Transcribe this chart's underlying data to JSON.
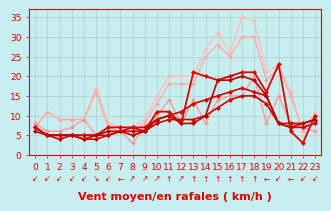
{
  "title": "",
  "xlabel": "Vent moyen/en rafales ( km/h )",
  "ylabel": "",
  "xlim": [
    -0.5,
    23.5
  ],
  "ylim": [
    0,
    37
  ],
  "yticks": [
    0,
    5,
    10,
    15,
    20,
    25,
    30,
    35
  ],
  "xticks": [
    0,
    1,
    2,
    3,
    4,
    5,
    6,
    7,
    8,
    9,
    10,
    11,
    12,
    13,
    14,
    15,
    16,
    17,
    18,
    19,
    20,
    21,
    22,
    23
  ],
  "background_color": "#c8efef",
  "grid_color": "#b0cccc",
  "series": [
    {
      "comment": "lightest pink - highest peaks up to 35",
      "x": [
        0,
        1,
        2,
        3,
        4,
        5,
        6,
        7,
        8,
        9,
        10,
        11,
        12,
        13,
        14,
        15,
        16,
        17,
        18,
        19,
        20,
        21,
        22,
        23
      ],
      "y": [
        7,
        11,
        9,
        9,
        9,
        17,
        8,
        7,
        7,
        9,
        15,
        20,
        20,
        20,
        27,
        31,
        26,
        35,
        34,
        21,
        23,
        16,
        6,
        11
      ],
      "color": "#ffbbbb",
      "lw": 1.0,
      "ms": 2.5
    },
    {
      "comment": "light pink",
      "x": [
        0,
        1,
        2,
        3,
        4,
        5,
        6,
        7,
        8,
        9,
        10,
        11,
        12,
        13,
        14,
        15,
        16,
        17,
        18,
        19,
        20,
        21,
        22,
        23
      ],
      "y": [
        7,
        11,
        9,
        9,
        9,
        16,
        7,
        6,
        6,
        8,
        13,
        18,
        18,
        18,
        25,
        28,
        25,
        30,
        30,
        19,
        22,
        15,
        6,
        10
      ],
      "color": "#ffaaaa",
      "lw": 1.0,
      "ms": 2.5
    },
    {
      "comment": "medium pink - wide swings",
      "x": [
        0,
        1,
        2,
        3,
        4,
        5,
        6,
        7,
        8,
        9,
        10,
        11,
        12,
        13,
        14,
        15,
        16,
        17,
        18,
        19,
        20,
        21,
        22,
        23
      ],
      "y": [
        8,
        6,
        6,
        7,
        9,
        5,
        6,
        6,
        3,
        7,
        10,
        14,
        8,
        14,
        8,
        14,
        15,
        15,
        20,
        8,
        15,
        8,
        7,
        6
      ],
      "color": "#ff9999",
      "lw": 1.0,
      "ms": 2.5
    },
    {
      "comment": "dark red line 1 - trending up steadily",
      "x": [
        0,
        1,
        2,
        3,
        4,
        5,
        6,
        7,
        8,
        9,
        10,
        11,
        12,
        13,
        14,
        15,
        16,
        17,
        18,
        19,
        20,
        21,
        22,
        23
      ],
      "y": [
        7,
        5,
        5,
        5,
        5,
        5,
        5,
        6,
        7,
        7,
        9,
        10,
        11,
        13,
        14,
        15,
        16,
        17,
        16,
        15,
        8,
        8,
        8,
        9
      ],
      "color": "#cc0000",
      "lw": 1.2,
      "ms": 2.5
    },
    {
      "comment": "dark red line 2 - stays low",
      "x": [
        0,
        1,
        2,
        3,
        4,
        5,
        6,
        7,
        8,
        9,
        10,
        11,
        12,
        13,
        14,
        15,
        16,
        17,
        18,
        19,
        20,
        21,
        22,
        23
      ],
      "y": [
        7,
        5,
        4,
        5,
        4,
        4,
        5,
        6,
        6,
        6,
        8,
        9,
        9,
        9,
        10,
        12,
        14,
        15,
        15,
        13,
        8,
        7,
        7,
        8
      ],
      "color": "#cc0000",
      "lw": 1.2,
      "ms": 2.5
    },
    {
      "comment": "darkest red - spiky, mid range",
      "x": [
        0,
        1,
        2,
        3,
        4,
        5,
        6,
        7,
        8,
        9,
        10,
        11,
        12,
        13,
        14,
        15,
        16,
        17,
        18,
        19,
        20,
        21,
        22,
        23
      ],
      "y": [
        7,
        5,
        5,
        5,
        5,
        5,
        7,
        7,
        7,
        6,
        11,
        11,
        8,
        21,
        20,
        19,
        20,
        21,
        21,
        16,
        23,
        6,
        3,
        10
      ],
      "color": "#dd0000",
      "lw": 1.3,
      "ms": 2.5
    },
    {
      "comment": "dark red - lower spiky",
      "x": [
        0,
        1,
        2,
        3,
        4,
        5,
        6,
        7,
        8,
        9,
        10,
        11,
        12,
        13,
        14,
        15,
        16,
        17,
        18,
        19,
        20,
        21,
        22,
        23
      ],
      "y": [
        6,
        5,
        5,
        5,
        4,
        5,
        6,
        6,
        5,
        6,
        9,
        10,
        8,
        8,
        10,
        19,
        19,
        20,
        19,
        15,
        8,
        7,
        8,
        9
      ],
      "color": "#bb0000",
      "lw": 1.2,
      "ms": 2.5
    }
  ],
  "arrows": [
    "↙",
    "↙",
    "↙",
    "↙",
    "↙",
    "↘",
    "↙",
    "←",
    "↗",
    "↗",
    "↗",
    "↑",
    "↗",
    "↑",
    "↑",
    "↑",
    "↑",
    "↑",
    "↑",
    "←",
    "↙",
    "←",
    "↙",
    "↙"
  ],
  "xlabel_color": "#dd0000",
  "xlabel_fontsize": 8,
  "tick_color": "#dd0000",
  "tick_fontsize": 6.5,
  "axis_color": "#dd0000"
}
